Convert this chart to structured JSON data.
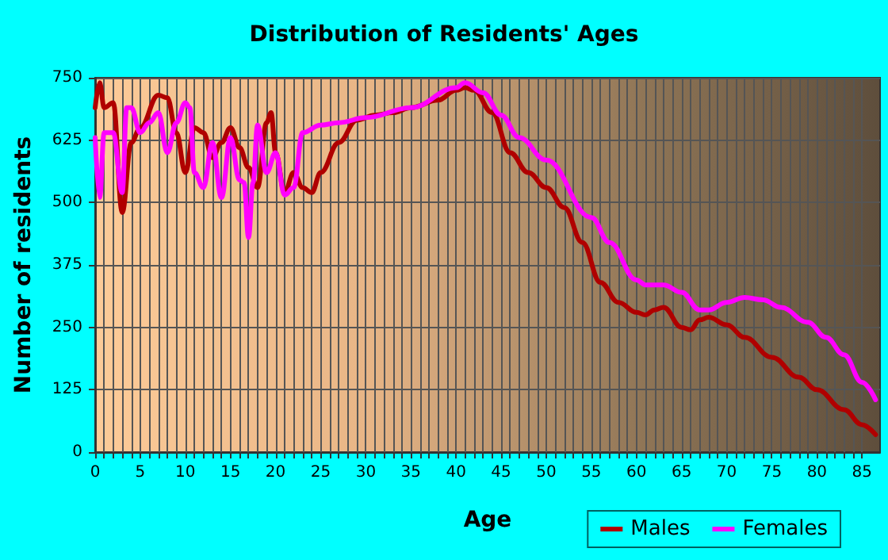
{
  "chart_data": {
    "type": "line",
    "title": "Distribution of Residents' Ages",
    "xlabel": "Age",
    "ylabel": "Number of residents",
    "xlim": [
      0,
      87
    ],
    "xticks": [
      0,
      5,
      10,
      15,
      20,
      25,
      30,
      35,
      40,
      45,
      50,
      55,
      60,
      65,
      70,
      75,
      80,
      85
    ],
    "ylim": [
      0,
      750
    ],
    "yticks": [
      0,
      125,
      250,
      375,
      500,
      625,
      750
    ],
    "grid": true,
    "legend": "bottom right",
    "marker": "none",
    "line_style": "solid",
    "series": [
      {
        "name": "Males",
        "color": "#b00000",
        "x": [
          0,
          0.5,
          1,
          2,
          3,
          4,
          5,
          7,
          8,
          9,
          10,
          11,
          12,
          13,
          14,
          15,
          16,
          17,
          18,
          19,
          19.5,
          20,
          21,
          22,
          23,
          24,
          25,
          27,
          29,
          31,
          33,
          35,
          38,
          40,
          41,
          42,
          44,
          46,
          48,
          50,
          52,
          54,
          56,
          58,
          60,
          61,
          62,
          63,
          65,
          66,
          67,
          68,
          70,
          72,
          75,
          78,
          80,
          83,
          85,
          86.5
        ],
        "values": [
          690,
          740,
          690,
          700,
          480,
          620,
          650,
          715,
          710,
          640,
          560,
          650,
          640,
          590,
          620,
          650,
          610,
          570,
          530,
          660,
          680,
          600,
          520,
          560,
          530,
          520,
          560,
          620,
          665,
          675,
          680,
          690,
          705,
          725,
          730,
          725,
          680,
          600,
          560,
          530,
          490,
          420,
          340,
          300,
          280,
          275,
          285,
          290,
          250,
          245,
          265,
          270,
          255,
          230,
          190,
          150,
          125,
          85,
          55,
          35
        ]
      },
      {
        "name": "Females",
        "color": "#ff00ff",
        "x": [
          0,
          0.5,
          1,
          2,
          3,
          3.5,
          4,
          5,
          6,
          7,
          8,
          9,
          10,
          10.5,
          11,
          12,
          13,
          14,
          15,
          16,
          16.5,
          17,
          17.5,
          18,
          19,
          20,
          21,
          22,
          23,
          25,
          27,
          30,
          35,
          40,
          41,
          43,
          45,
          47,
          50,
          55,
          57,
          60,
          61,
          63,
          65,
          67,
          68,
          70,
          72,
          74,
          76,
          79,
          81,
          83,
          85,
          86.5
        ],
        "values": [
          630,
          510,
          640,
          640,
          520,
          690,
          690,
          640,
          660,
          680,
          600,
          660,
          700,
          690,
          560,
          530,
          620,
          510,
          630,
          545,
          540,
          430,
          540,
          655,
          560,
          600,
          515,
          530,
          640,
          655,
          660,
          670,
          690,
          730,
          740,
          720,
          675,
          630,
          585,
          470,
          420,
          345,
          335,
          335,
          320,
          285,
          285,
          300,
          310,
          305,
          290,
          260,
          230,
          195,
          140,
          105
        ]
      }
    ]
  }
}
